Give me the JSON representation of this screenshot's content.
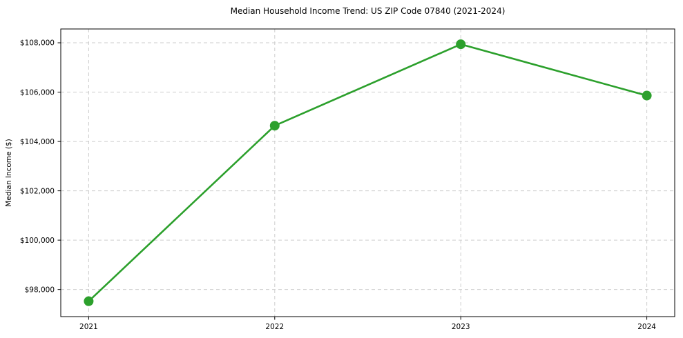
{
  "chart_data": {
    "type": "line",
    "title": "Median Household Income Trend: US ZIP Code 07840 (2021-2024)",
    "xlabel": "",
    "ylabel": "Median Income ($)",
    "x": [
      2021,
      2022,
      2023,
      2024
    ],
    "x_tick_labels": [
      "2021",
      "2022",
      "2023",
      "2024"
    ],
    "series": [
      {
        "name": "Median Household Income",
        "values": [
          97525,
          104640,
          107940,
          105860
        ],
        "color": "#2ca02c",
        "marker": "circle"
      }
    ],
    "y_ticks": [
      98000,
      100000,
      102000,
      104000,
      106000,
      108000
    ],
    "y_tick_labels": [
      "$98,000",
      "$100,000",
      "$102,000",
      "$104,000",
      "$106,000",
      "$108,000"
    ],
    "xlim": [
      2020.85,
      2024.15
    ],
    "ylim": [
      96900,
      108560
    ],
    "grid": true,
    "grid_style": "dashed",
    "grid_color": "#cccccc",
    "spine_color": "#000000",
    "background": "#ffffff",
    "legend": "none",
    "tick_font_size": 10.5,
    "title_font_size": 12
  }
}
